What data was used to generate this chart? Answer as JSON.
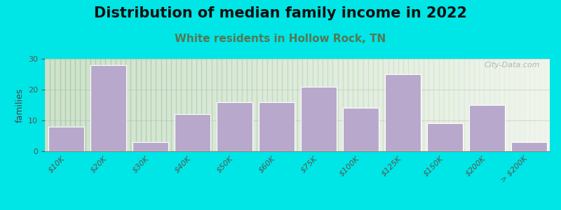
{
  "title": "Distribution of median family income in 2022",
  "subtitle": "White residents in Hollow Rock, TN",
  "ylabel": "families",
  "categories": [
    "$10K",
    "$20K",
    "$30K",
    "$40K",
    "$50K",
    "$60K",
    "$75K",
    "$100K",
    "$125K",
    "$150K",
    "$200K",
    "> $200K"
  ],
  "values": [
    8,
    28,
    3,
    12,
    16,
    16,
    21,
    14,
    25,
    9,
    15,
    3
  ],
  "bar_color": "#b8a8cc",
  "bar_edge_color": "#ffffff",
  "background_outer": "#00e5e5",
  "background_plot_left": "#d8ecd8",
  "background_plot_right": "#f8faf4",
  "title_fontsize": 15,
  "subtitle_fontsize": 11,
  "ylabel_fontsize": 9,
  "tick_fontsize": 8,
  "ylim": [
    0,
    30
  ],
  "yticks": [
    0,
    10,
    20,
    30
  ],
  "watermark": "City-Data.com",
  "subtitle_color": "#557755",
  "title_color": "#111111"
}
